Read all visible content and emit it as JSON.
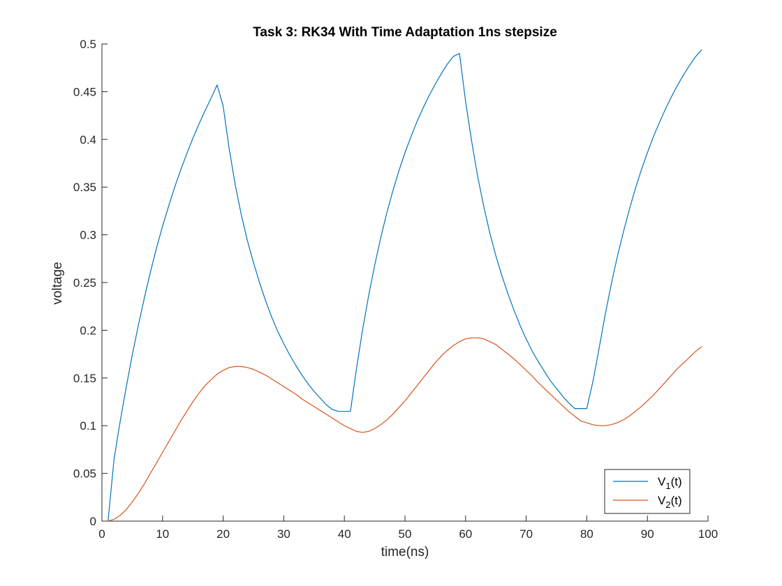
{
  "chart_data": {
    "type": "line",
    "title": "Task 3: RK34 With Time Adaptation 1ns stepsize",
    "xlabel": "time(ns)",
    "ylabel": "voltage",
    "xlim": [
      0,
      100
    ],
    "ylim": [
      0,
      0.5
    ],
    "xticks": [
      "0",
      "10",
      "20",
      "30",
      "40",
      "50",
      "60",
      "70",
      "80",
      "90",
      "100"
    ],
    "yticks": [
      "0",
      "0.05",
      "0.1",
      "0.15",
      "0.2",
      "0.25",
      "0.3",
      "0.35",
      "0.4",
      "0.45",
      "0.5"
    ],
    "grid": false,
    "legend_position": "bottom-right",
    "series": [
      {
        "name": "V1(t)",
        "legend_base": "V",
        "legend_sub": "1",
        "legend_suffix": "(t)",
        "color": "#0072BD",
        "x": [
          1,
          2,
          3,
          4,
          5,
          6,
          7,
          8,
          9,
          10,
          11,
          12,
          13,
          14,
          15,
          16,
          17,
          18,
          19,
          20,
          21,
          22,
          23,
          24,
          25,
          26,
          27,
          28,
          29,
          30,
          31,
          32,
          33,
          34,
          35,
          36,
          37,
          38,
          39,
          40,
          41,
          42,
          43,
          44,
          45,
          46,
          47,
          48,
          49,
          50,
          51,
          52,
          53,
          54,
          55,
          56,
          57,
          58,
          59,
          60,
          61,
          62,
          63,
          64,
          65,
          66,
          67,
          68,
          69,
          70,
          71,
          72,
          73,
          74,
          75,
          76,
          77,
          78,
          79,
          80,
          81,
          82,
          83,
          84,
          85,
          86,
          87,
          88,
          89,
          90,
          91,
          92,
          93,
          94,
          95,
          96,
          97,
          98,
          99
        ],
        "y": [
          0,
          0.065,
          0.104,
          0.14,
          0.174,
          0.205,
          0.234,
          0.261,
          0.286,
          0.309,
          0.33,
          0.35,
          0.368,
          0.385,
          0.401,
          0.416,
          0.43,
          0.443,
          0.457,
          0.435,
          0.39,
          0.352,
          0.321,
          0.294,
          0.271,
          0.25,
          0.231,
          0.214,
          0.199,
          0.186,
          0.174,
          0.163,
          0.153,
          0.144,
          0.136,
          0.129,
          0.122,
          0.117,
          0.115,
          0.115,
          0.115,
          0.16,
          0.2,
          0.236,
          0.268,
          0.297,
          0.323,
          0.346,
          0.367,
          0.386,
          0.403,
          0.419,
          0.433,
          0.446,
          0.458,
          0.469,
          0.479,
          0.487,
          0.49,
          0.44,
          0.398,
          0.361,
          0.33,
          0.302,
          0.278,
          0.257,
          0.238,
          0.221,
          0.205,
          0.191,
          0.178,
          0.167,
          0.157,
          0.147,
          0.139,
          0.131,
          0.124,
          0.118,
          0.118,
          0.118,
          0.146,
          0.18,
          0.215,
          0.247,
          0.276,
          0.302,
          0.326,
          0.348,
          0.368,
          0.386,
          0.403,
          0.418,
          0.432,
          0.445,
          0.457,
          0.468,
          0.478,
          0.487,
          0.494
        ]
      },
      {
        "name": "V2(t)",
        "legend_base": "V",
        "legend_sub": "2",
        "legend_suffix": "(t)",
        "color": "#D95319",
        "x": [
          1,
          2,
          3,
          4,
          5,
          6,
          7,
          8,
          9,
          10,
          11,
          12,
          13,
          14,
          15,
          16,
          17,
          18,
          19,
          20,
          21,
          22,
          23,
          24,
          25,
          26,
          27,
          28,
          29,
          30,
          31,
          32,
          33,
          34,
          35,
          36,
          37,
          38,
          39,
          40,
          41,
          42,
          43,
          44,
          45,
          46,
          47,
          48,
          49,
          50,
          51,
          52,
          53,
          54,
          55,
          56,
          57,
          58,
          59,
          60,
          61,
          62,
          63,
          64,
          65,
          66,
          67,
          68,
          69,
          70,
          71,
          72,
          73,
          74,
          75,
          76,
          77,
          78,
          79,
          80,
          81,
          82,
          83,
          84,
          85,
          86,
          87,
          88,
          89,
          90,
          91,
          92,
          93,
          94,
          95,
          96,
          97,
          98,
          99
        ],
        "y": [
          0,
          0.002,
          0.006,
          0.012,
          0.02,
          0.029,
          0.039,
          0.05,
          0.061,
          0.072,
          0.083,
          0.094,
          0.105,
          0.115,
          0.125,
          0.134,
          0.142,
          0.148,
          0.154,
          0.158,
          0.161,
          0.162,
          0.162,
          0.161,
          0.159,
          0.156,
          0.153,
          0.149,
          0.145,
          0.141,
          0.137,
          0.133,
          0.128,
          0.124,
          0.12,
          0.116,
          0.112,
          0.108,
          0.104,
          0.1,
          0.097,
          0.094,
          0.093,
          0.094,
          0.097,
          0.101,
          0.106,
          0.112,
          0.119,
          0.126,
          0.134,
          0.142,
          0.15,
          0.158,
          0.166,
          0.173,
          0.179,
          0.184,
          0.188,
          0.191,
          0.192,
          0.192,
          0.191,
          0.188,
          0.185,
          0.18,
          0.175,
          0.17,
          0.164,
          0.158,
          0.152,
          0.145,
          0.139,
          0.133,
          0.127,
          0.121,
          0.115,
          0.11,
          0.105,
          0.103,
          0.101,
          0.1,
          0.1,
          0.101,
          0.103,
          0.106,
          0.11,
          0.115,
          0.12,
          0.126,
          0.132,
          0.139,
          0.146,
          0.153,
          0.16,
          0.166,
          0.172,
          0.178,
          0.183
        ]
      }
    ]
  }
}
